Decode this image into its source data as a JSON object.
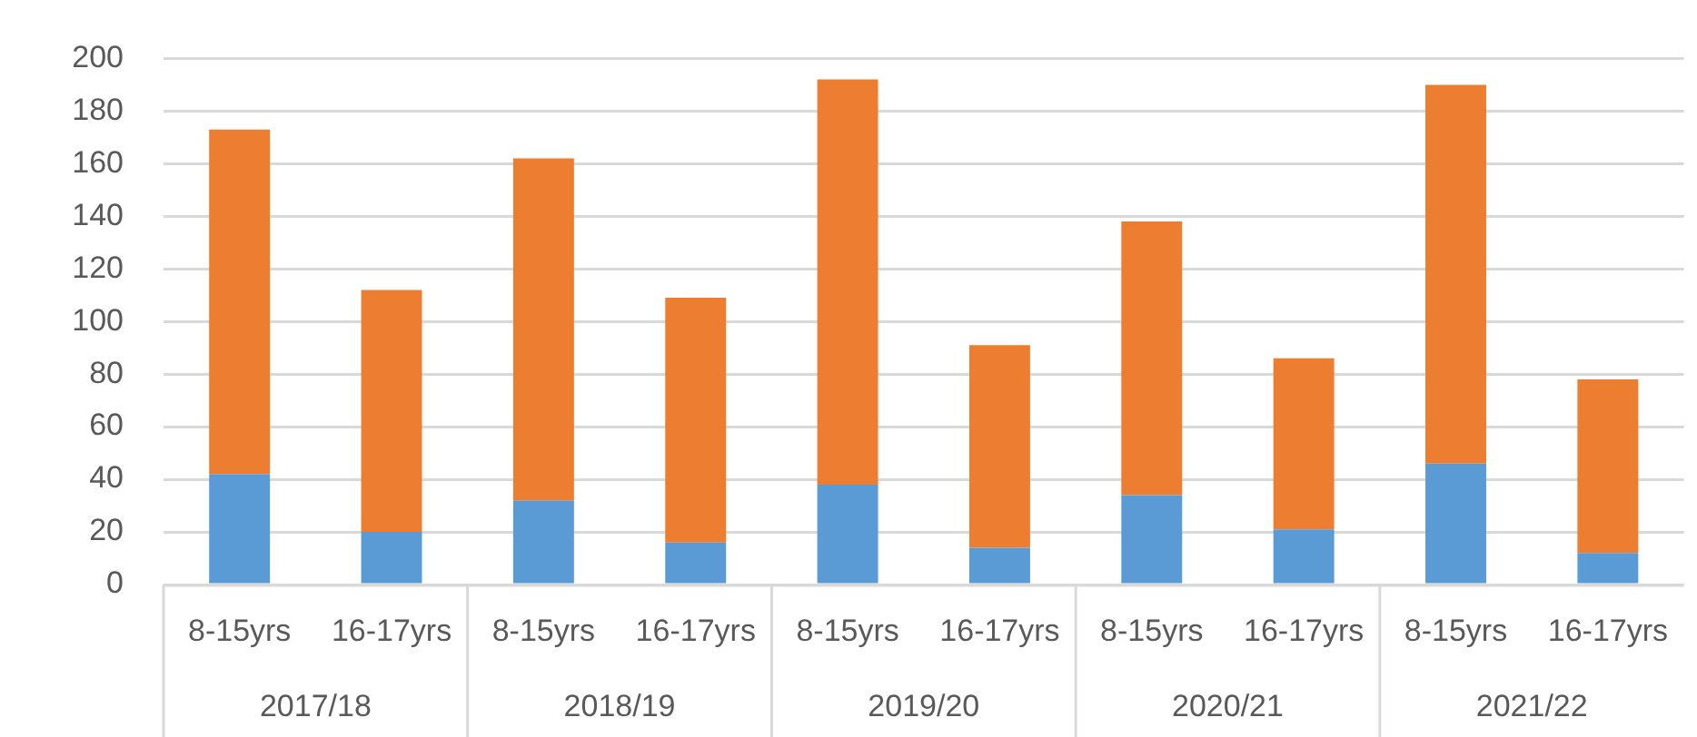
{
  "chart_data": {
    "type": "bar",
    "stacked": true,
    "categories": [
      "8-15yrs",
      "16-17yrs",
      "8-15yrs",
      "16-17yrs",
      "8-15yrs",
      "16-17yrs",
      "8-15yrs",
      "16-17yrs",
      "8-15yrs",
      "16-17yrs"
    ],
    "series": [
      {
        "color": "#5b9bd5",
        "values": [
          42,
          20,
          32,
          16,
          38,
          14,
          34,
          21,
          46,
          12
        ]
      },
      {
        "color": "#ed7d31",
        "values": [
          131,
          92,
          130,
          93,
          154,
          77,
          104,
          65,
          144,
          66
        ]
      }
    ],
    "annotations": [
      "2017/18",
      "2018/19",
      "2019/20",
      "2020/21",
      "2021/22"
    ],
    "ylim": [
      0,
      200
    ],
    "yticks": [
      0,
      20,
      40,
      60,
      80,
      100,
      120,
      140,
      160,
      180,
      200
    ],
    "grid": "y",
    "legend": false
  }
}
